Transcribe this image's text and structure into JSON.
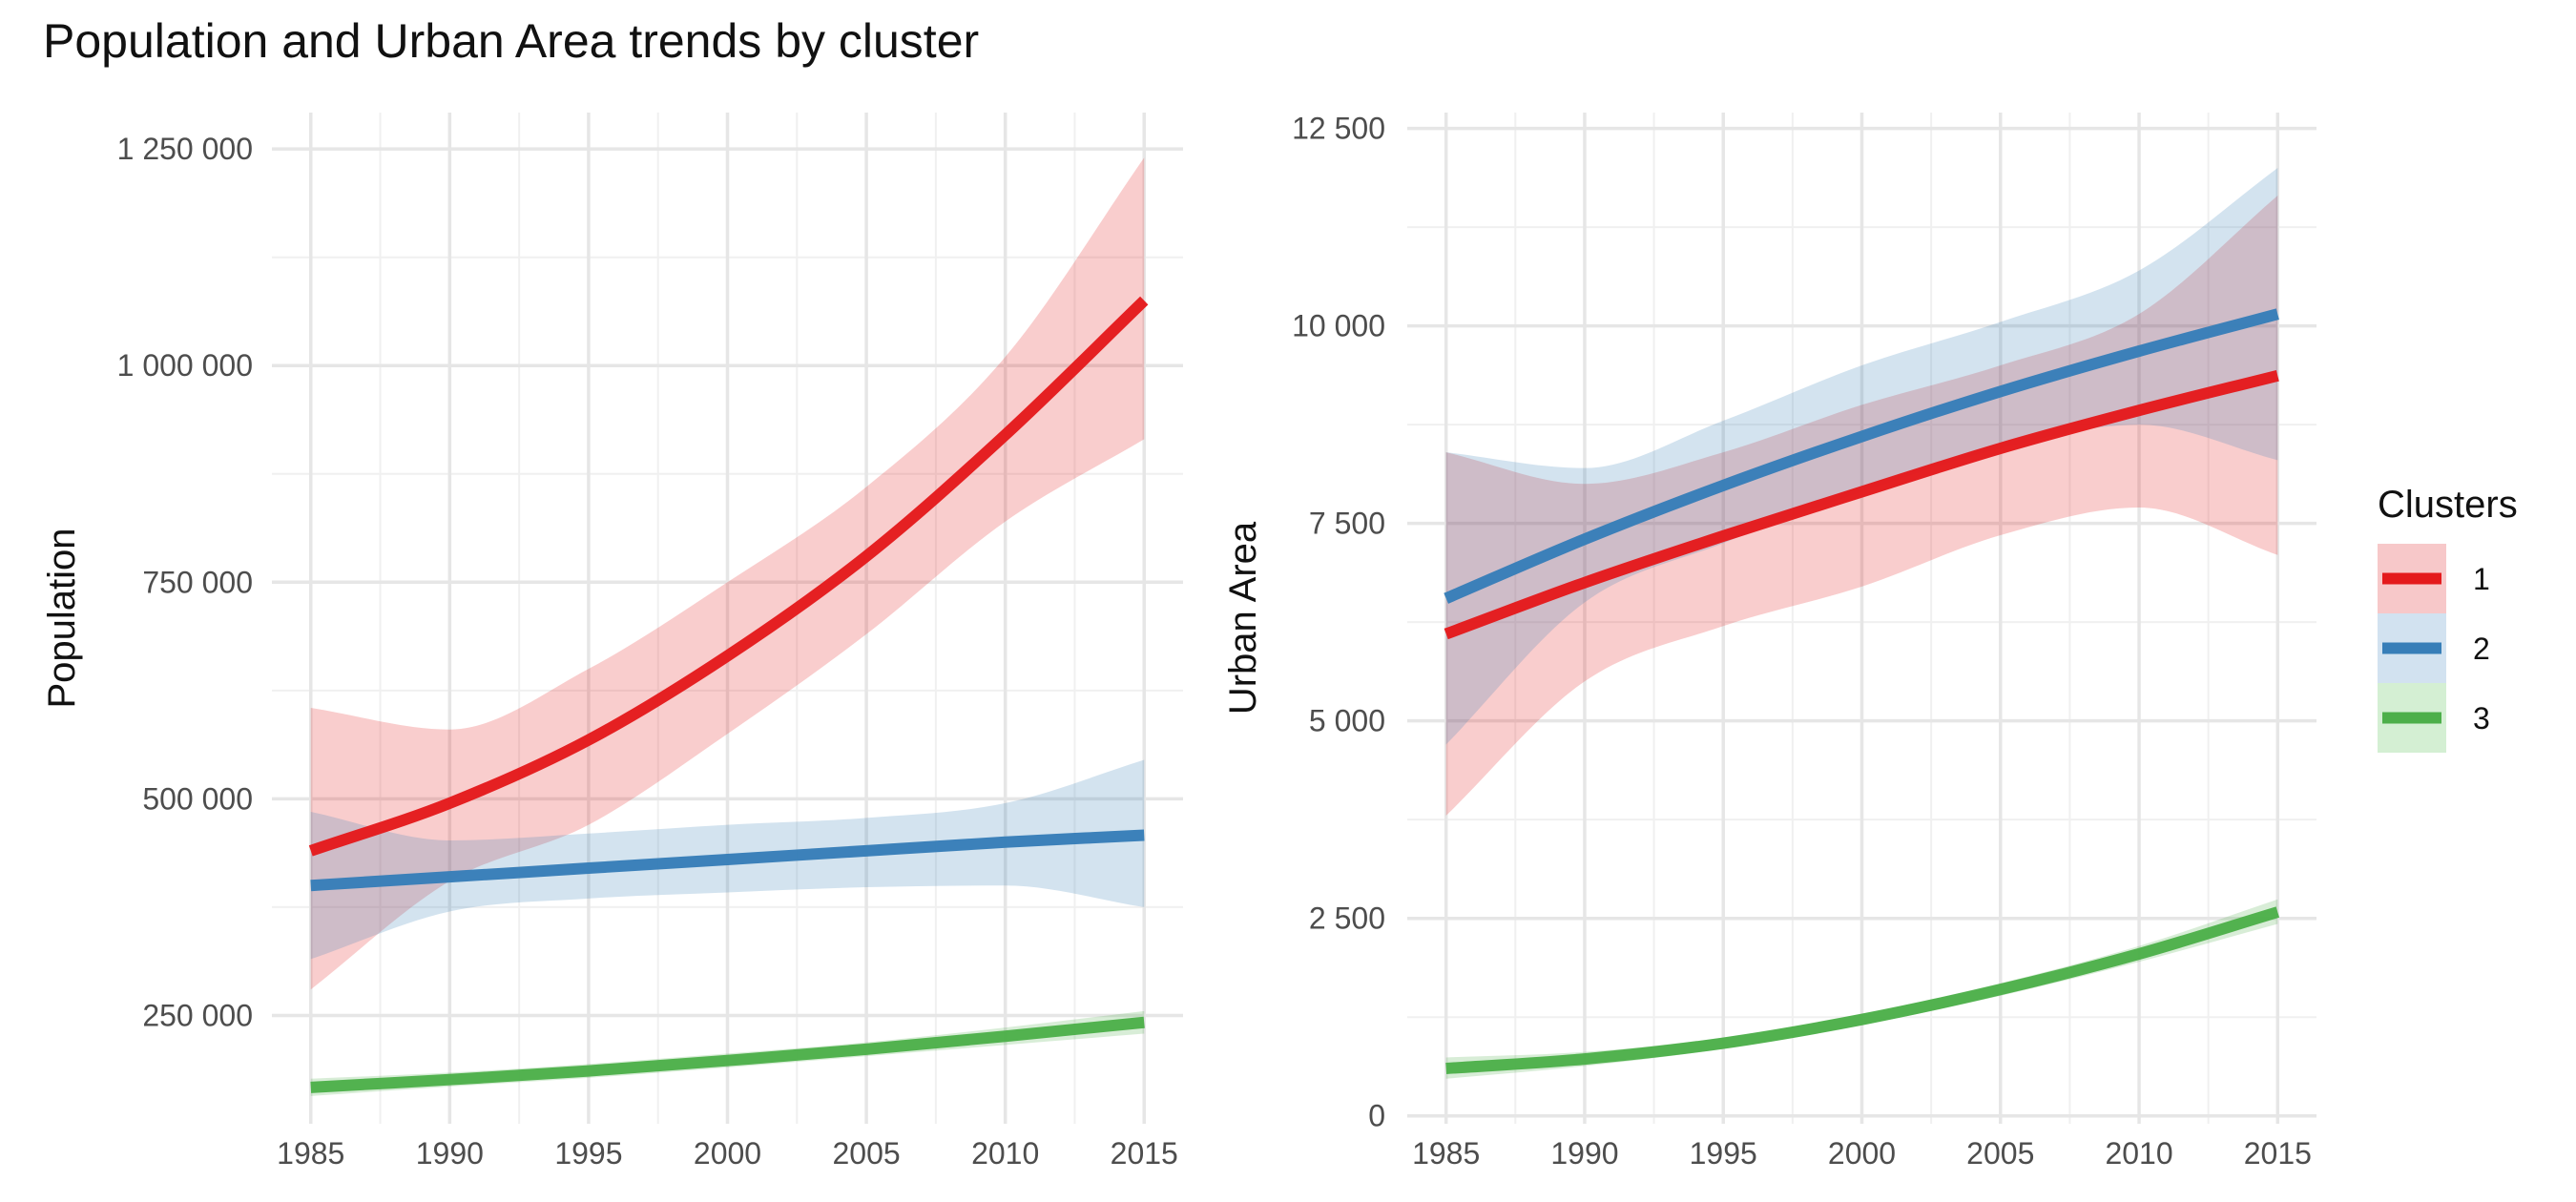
{
  "title": "Population and Urban Area trends by cluster",
  "legend": {
    "title": "Clusters",
    "placement": "right",
    "items": [
      {
        "label": "1",
        "line_color": "#E41A1C",
        "fill_color": "#F7C8C9"
      },
      {
        "label": "2",
        "line_color": "#377EB8",
        "fill_color": "#D2E2F0"
      },
      {
        "label": "3",
        "line_color": "#4DAF4A",
        "fill_color": "#D4EFD3"
      }
    ]
  },
  "chart_data": [
    {
      "type": "line",
      "title": "",
      "xlabel": "",
      "ylabel": "Population",
      "grid": true,
      "xlim": [
        1983.6,
        2016.4
      ],
      "ylim": [
        125000,
        1292000
      ],
      "x_ticks": [
        1985,
        1990,
        1995,
        2000,
        2005,
        2010,
        2015
      ],
      "x_tick_labels": [
        "1985",
        "1990",
        "1995",
        "2000",
        "2005",
        "2010",
        "2015"
      ],
      "y_ticks": [
        250000,
        500000,
        750000,
        1000000,
        1250000
      ],
      "y_tick_labels": [
        "250 000",
        "500 000",
        "750 000",
        "1 000 000",
        "1 250 000"
      ],
      "x": [
        1985,
        1990,
        1995,
        2000,
        2005,
        2010,
        2015
      ],
      "series": [
        {
          "name": "1",
          "color": "#E41A1C",
          "values": [
            440000,
            495000,
            568000,
            665000,
            780000,
            920000,
            1075000
          ],
          "lower": [
            280000,
            405000,
            470000,
            575000,
            690000,
            820000,
            915000
          ],
          "upper": [
            605000,
            580000,
            650000,
            750000,
            860000,
            1010000,
            1240000
          ]
        },
        {
          "name": "2",
          "color": "#377EB8",
          "values": [
            400000,
            410000,
            420000,
            430000,
            440000,
            450000,
            458000
          ],
          "lower": [
            315000,
            370000,
            385000,
            392000,
            398000,
            400000,
            375000
          ],
          "upper": [
            485000,
            452000,
            460000,
            470000,
            478000,
            495000,
            545000
          ]
        },
        {
          "name": "3",
          "color": "#4DAF4A",
          "values": [
            167000,
            176000,
            186000,
            198000,
            211000,
            226000,
            242000
          ],
          "lower": [
            157000,
            168000,
            178000,
            190000,
            203000,
            216000,
            229000
          ],
          "upper": [
            177000,
            184000,
            194000,
            206000,
            219000,
            236000,
            255000
          ]
        }
      ]
    },
    {
      "type": "line",
      "title": "",
      "xlabel": "",
      "ylabel": "Urban Area",
      "grid": true,
      "xlim": [
        1983.6,
        2016.4
      ],
      "ylim": [
        -100,
        12700
      ],
      "x_ticks": [
        1985,
        1990,
        1995,
        2000,
        2005,
        2010,
        2015
      ],
      "x_tick_labels": [
        "1985",
        "1990",
        "1995",
        "2000",
        "2005",
        "2010",
        "2015"
      ],
      "y_ticks": [
        0,
        2500,
        5000,
        7500,
        10000,
        12500
      ],
      "y_tick_labels": [
        "0",
        "2 500",
        "5 000",
        "7 500",
        "10 000",
        "12 500"
      ],
      "x": [
        1985,
        1990,
        1995,
        2000,
        2005,
        2010,
        2015
      ],
      "series": [
        {
          "name": "1",
          "color": "#E41A1C",
          "values": [
            6100,
            6750,
            7340,
            7900,
            8450,
            8930,
            9370
          ],
          "lower": [
            3800,
            5500,
            6200,
            6700,
            7350,
            7700,
            7100
          ],
          "upper": [
            8400,
            8000,
            8400,
            9000,
            9500,
            10150,
            11650
          ]
        },
        {
          "name": "2",
          "color": "#377EB8",
          "values": [
            6550,
            7300,
            7980,
            8600,
            9170,
            9680,
            10150
          ],
          "lower": [
            4700,
            6500,
            7250,
            7900,
            8450,
            8750,
            8300
          ],
          "upper": [
            8400,
            8200,
            8800,
            9500,
            10050,
            10700,
            12000
          ]
        },
        {
          "name": "3",
          "color": "#4DAF4A",
          "values": [
            600,
            720,
            920,
            1220,
            1600,
            2050,
            2580
          ],
          "lower": [
            470,
            630,
            850,
            1150,
            1520,
            1950,
            2430
          ],
          "upper": [
            740,
            810,
            990,
            1290,
            1680,
            2150,
            2740
          ]
        }
      ]
    }
  ]
}
